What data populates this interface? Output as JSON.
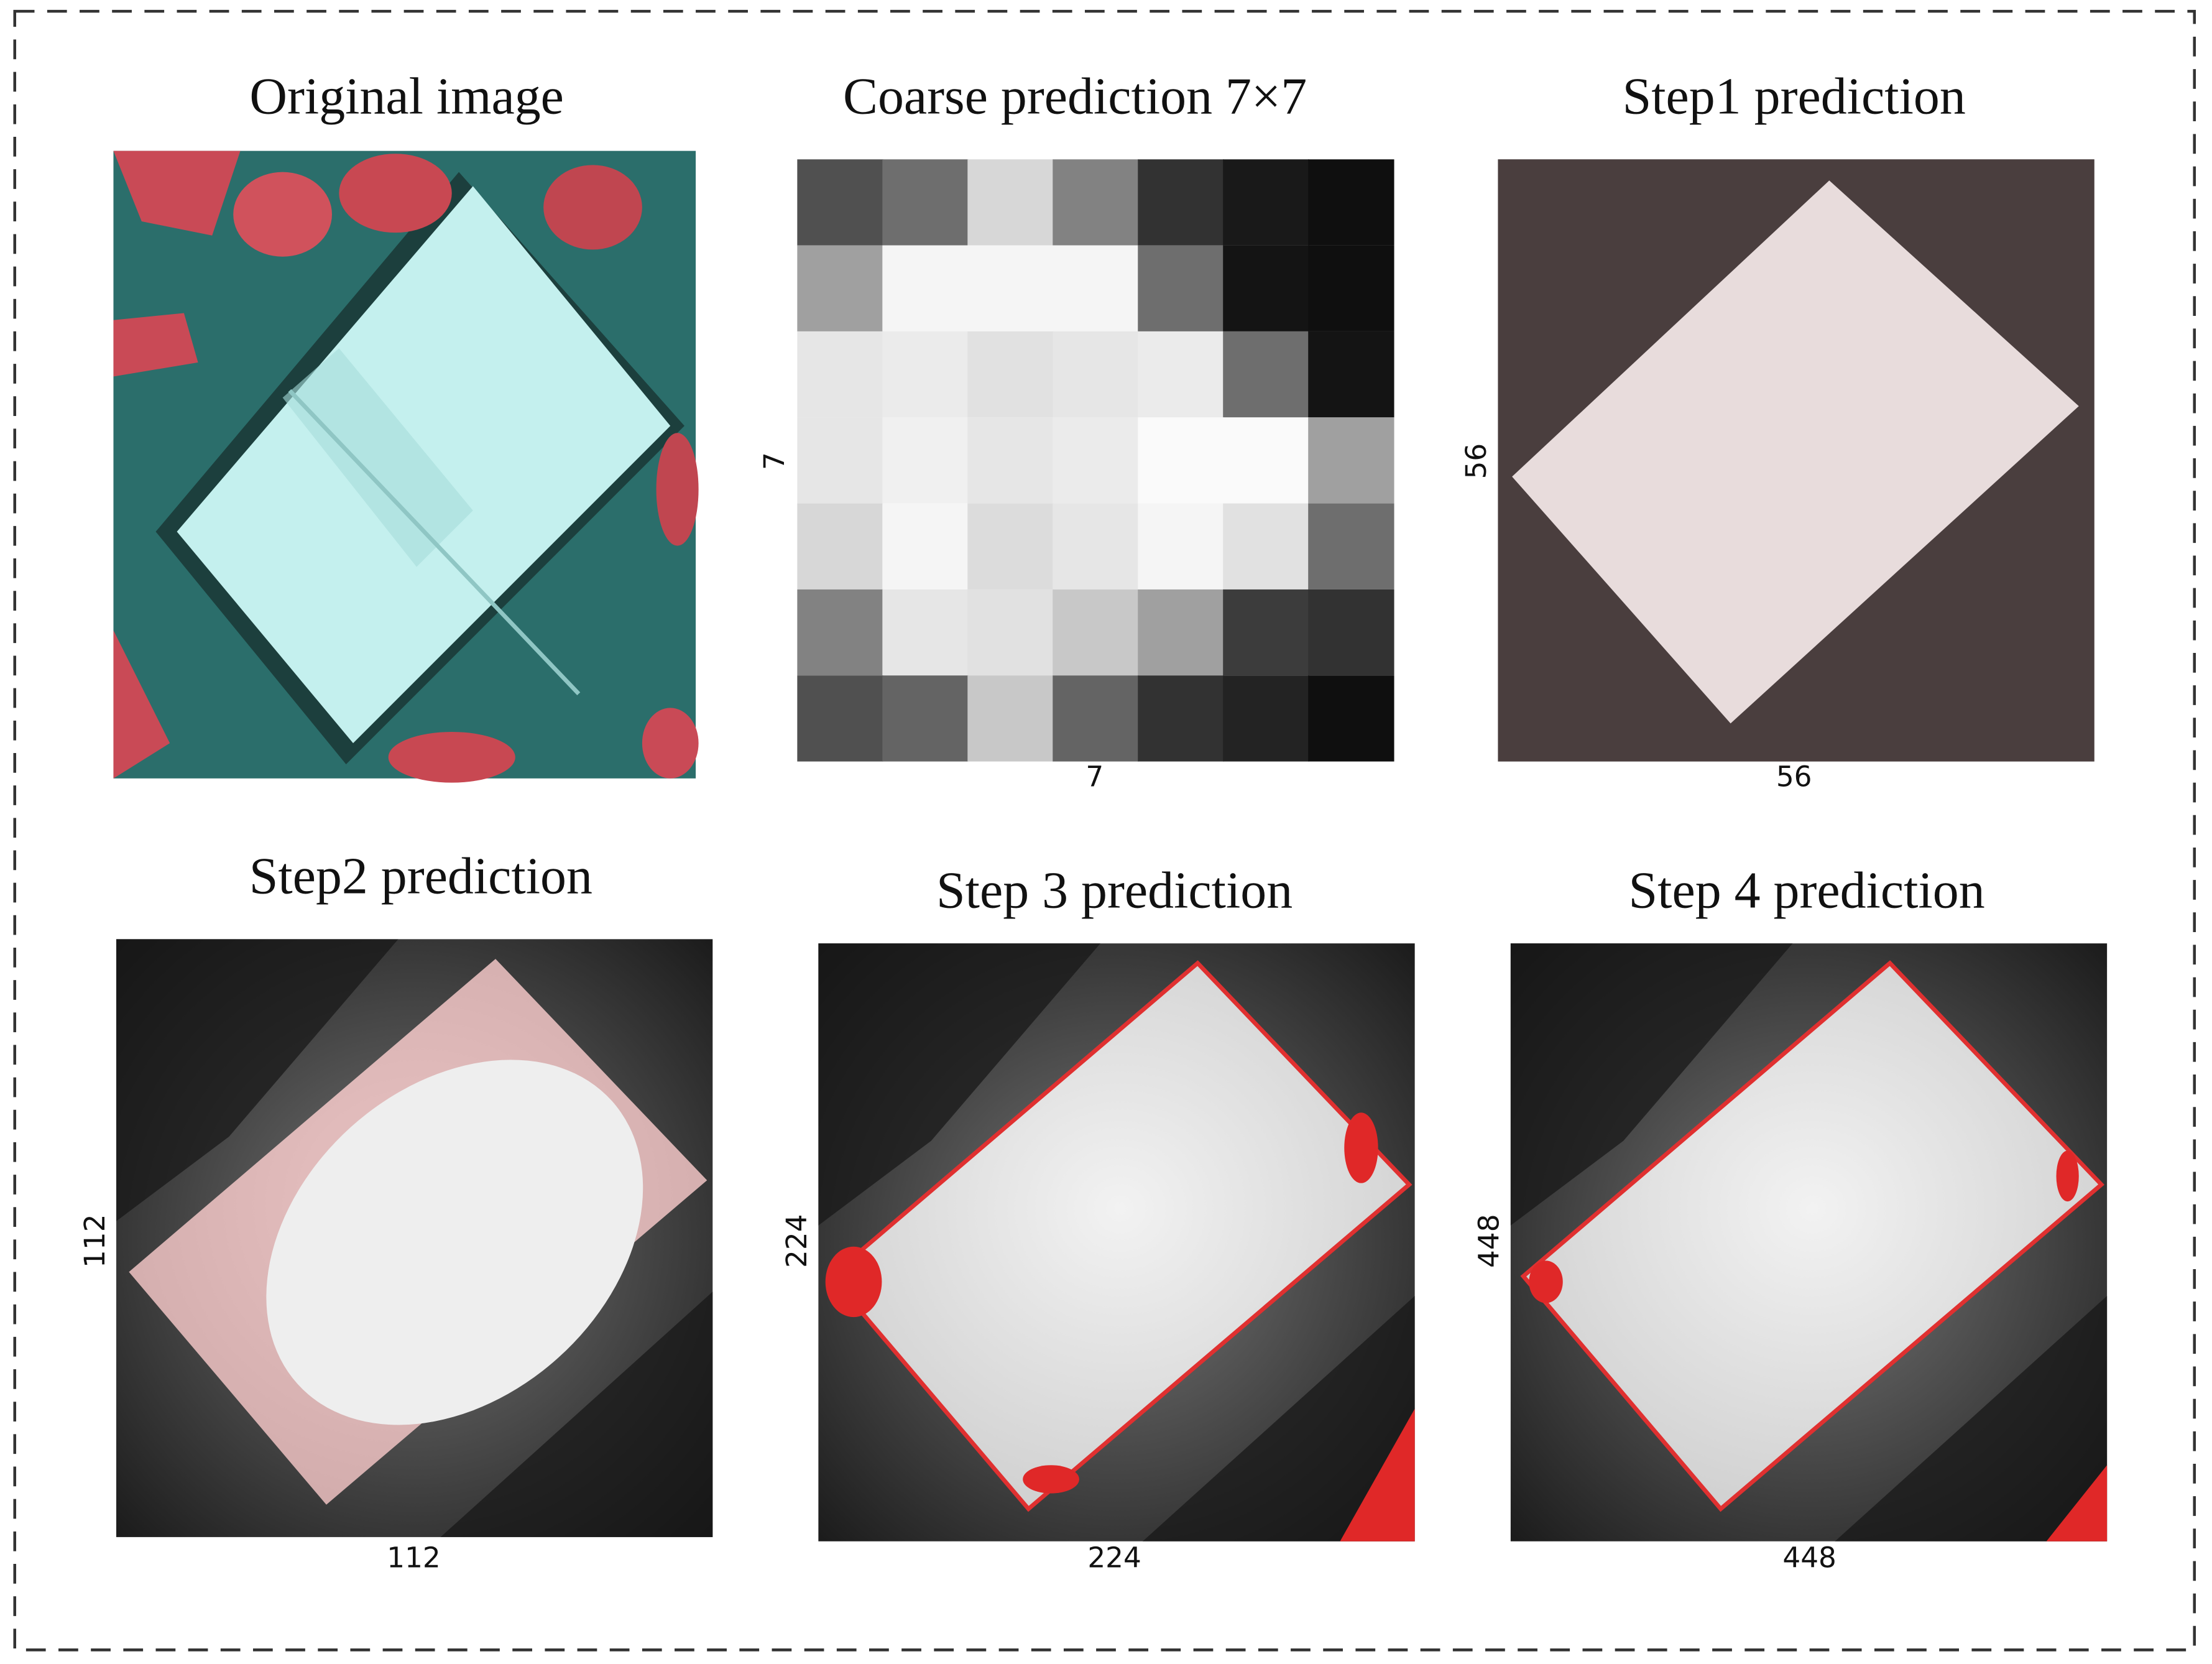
{
  "panels": [
    {
      "title": "Original image"
    },
    {
      "title": "Coarse prediction 7×7",
      "xlabel": "7",
      "ylabel": "7"
    },
    {
      "title": "Step1 prediction",
      "xlabel": "56",
      "ylabel": "56"
    },
    {
      "title": "Step2 prediction",
      "xlabel": "112",
      "ylabel": "112"
    },
    {
      "title": "Step 3 prediction",
      "xlabel": "224",
      "ylabel": "224"
    },
    {
      "title": "Step 4 prediction",
      "xlabel": "448",
      "ylabel": "448"
    }
  ]
}
